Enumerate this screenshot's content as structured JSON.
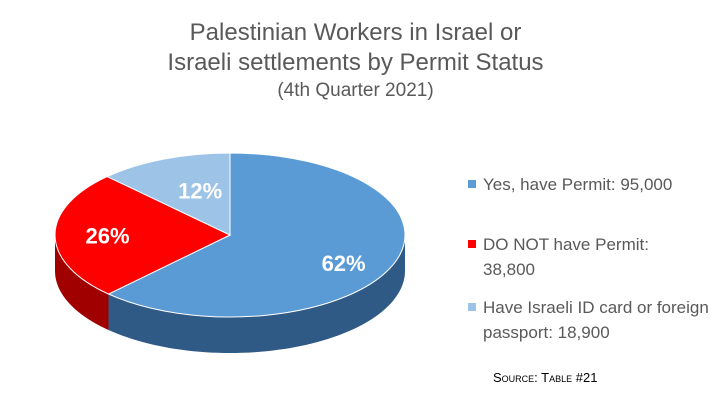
{
  "chart_data": {
    "type": "pie",
    "title_line1": "Palestinian Workers in Israel or",
    "title_line2": "Israeli settlements by Permit Status",
    "subtitle": "(4th Quarter 2021)",
    "slices": [
      {
        "label": "Yes, have Permit: 95,000",
        "value": 95000,
        "percent_label": "62%",
        "percent": 62,
        "color": "#5B9BD5",
        "side_color": "#2E5A85"
      },
      {
        "label": "DO NOT have Permit: 38,800",
        "value": 38800,
        "percent_label": "26%",
        "percent": 26,
        "color": "#FF0000",
        "side_color": "#A00000"
      },
      {
        "label": "Have Israeli ID card or foreign passport: 18,900",
        "value": 18900,
        "percent_label": "12%",
        "percent": 12,
        "color": "#9DC3E6",
        "side_color": "#6E8FB0"
      }
    ],
    "legend_position": "right",
    "source": "Source: Table #21"
  }
}
